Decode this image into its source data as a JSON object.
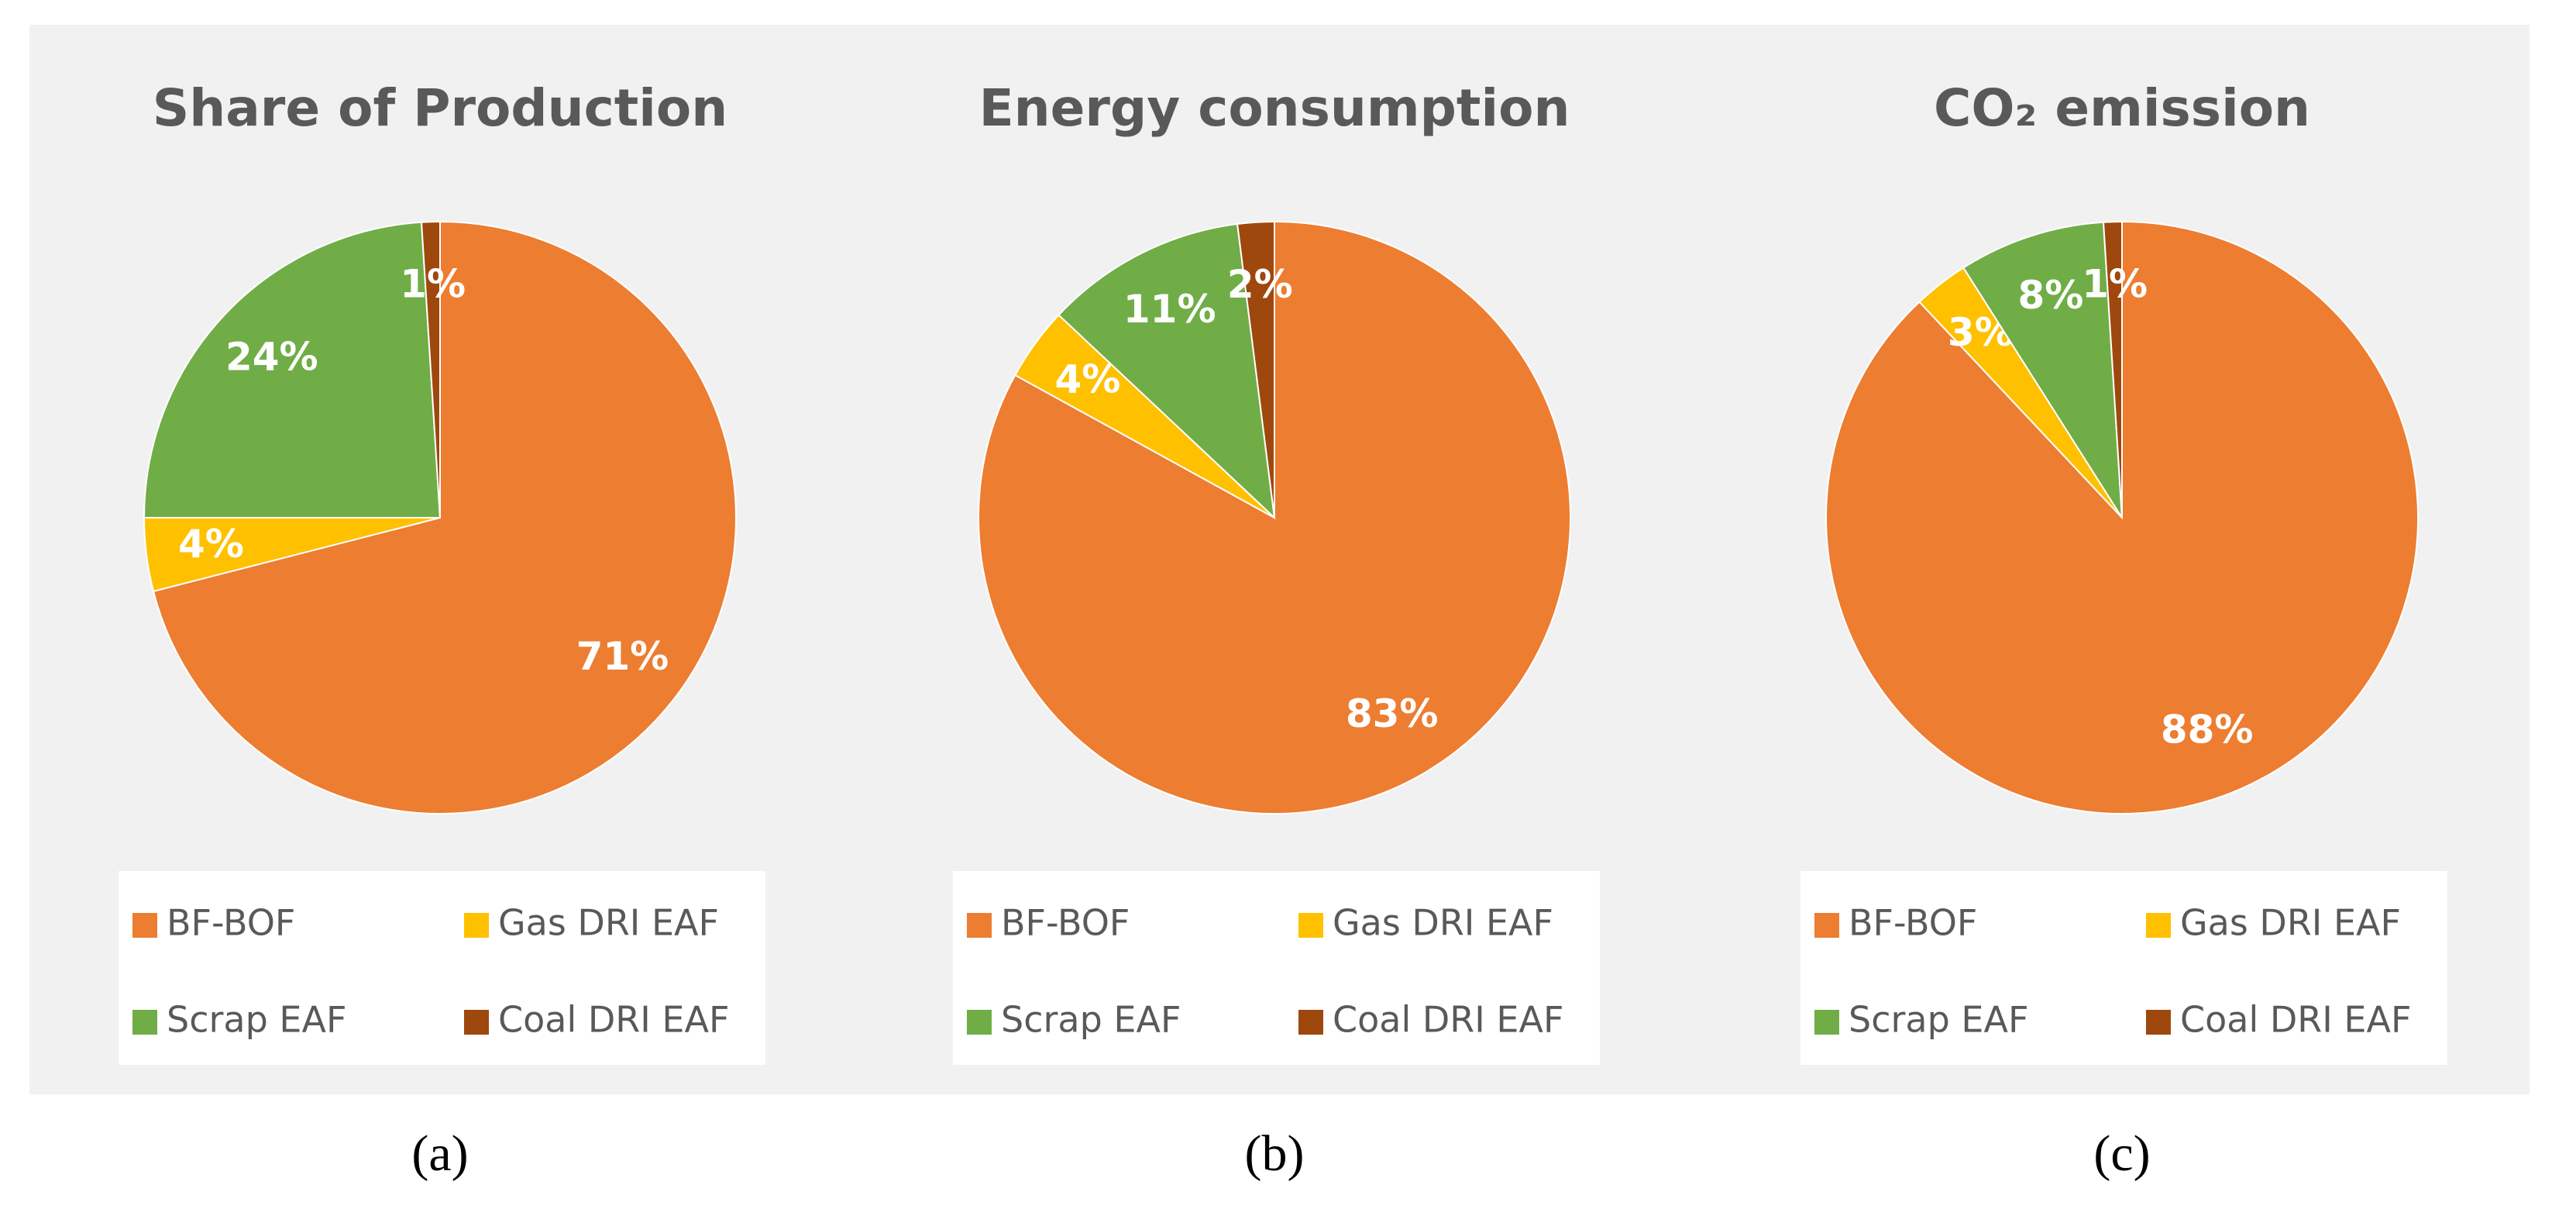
{
  "chart_data": [
    {
      "type": "pie",
      "title": "Share of Production",
      "caption": "(a)",
      "categories": [
        "BF-BOF",
        "Gas DRI EAF",
        "Scrap EAF",
        "Coal DRI EAF"
      ],
      "values": [
        71,
        4,
        24,
        1
      ],
      "colors": [
        "#ED7D31",
        "#FFC000",
        "#70AD47",
        "#9E480E"
      ],
      "legend": "bottom"
    },
    {
      "type": "pie",
      "title": "Energy consumption",
      "caption": "(b)",
      "categories": [
        "BF-BOF",
        "Gas DRI EAF",
        "Scrap EAF",
        "Coal DRI EAF"
      ],
      "values": [
        83,
        4,
        11,
        2
      ],
      "colors": [
        "#ED7D31",
        "#FFC000",
        "#70AD47",
        "#9E480E"
      ],
      "legend": "bottom"
    },
    {
      "type": "pie",
      "title": "CO₂ emission",
      "caption": "(c)",
      "categories": [
        "BF-BOF",
        "Gas DRI EAF",
        "Scrap EAF",
        "Coal DRI EAF"
      ],
      "values": [
        88,
        3,
        8,
        1
      ],
      "colors": [
        "#ED7D31",
        "#FFC000",
        "#70AD47",
        "#9E480E"
      ],
      "legend": "bottom"
    }
  ]
}
